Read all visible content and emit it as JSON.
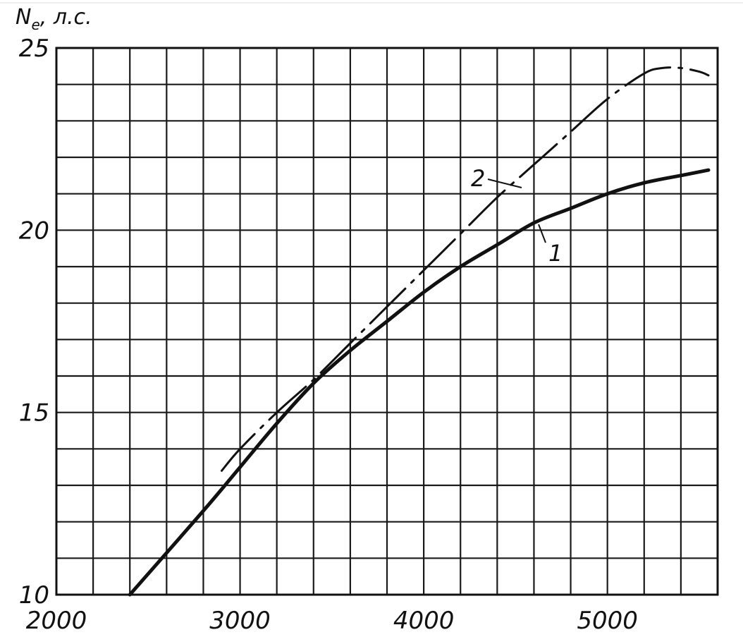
{
  "chart_data": {
    "type": "line",
    "title": "",
    "ylabel": "N",
    "ylabel_sub": "e",
    "ylabel_unit": ", л.с.",
    "xlabel": "",
    "xlim": [
      2000,
      5600
    ],
    "ylim": [
      10,
      25
    ],
    "x_ticks": [
      {
        "value": 2000,
        "label": "2000"
      },
      {
        "value": 3000,
        "label": "3000"
      },
      {
        "value": 4000,
        "label": "4000"
      },
      {
        "value": 5000,
        "label": "5000"
      }
    ],
    "y_ticks": [
      {
        "value": 10,
        "label": "10"
      },
      {
        "value": 15,
        "label": "15"
      },
      {
        "value": 20,
        "label": "20"
      },
      {
        "value": 25,
        "label": "25"
      }
    ],
    "grid": true,
    "series": [
      {
        "name": "1",
        "style": "solid",
        "color": "#111111",
        "x": [
          2400,
          2800,
          3000,
          3200,
          3400,
          3600,
          3800,
          4000,
          4200,
          4400,
          4600,
          4800,
          5000,
          5200,
          5400,
          5550
        ],
        "y": [
          10.0,
          12.3,
          13.5,
          14.7,
          15.8,
          16.7,
          17.5,
          18.3,
          19.0,
          19.6,
          20.2,
          20.6,
          21.0,
          21.3,
          21.5,
          21.65
        ]
      },
      {
        "name": "2",
        "style": "dash-dot",
        "color": "#111111",
        "x": [
          2900,
          3000,
          3200,
          3400,
          3600,
          3800,
          4000,
          4200,
          4400,
          4600,
          4800,
          5000,
          5200,
          5300,
          5400,
          5500,
          5550
        ],
        "y": [
          13.4,
          14.0,
          15.0,
          15.9,
          16.9,
          17.9,
          18.9,
          19.9,
          20.9,
          21.8,
          22.7,
          23.6,
          24.3,
          24.45,
          24.45,
          24.35,
          24.25
        ]
      }
    ],
    "annotations": [
      {
        "text": "2",
        "series": "2"
      },
      {
        "text": "1",
        "series": "1"
      }
    ]
  }
}
